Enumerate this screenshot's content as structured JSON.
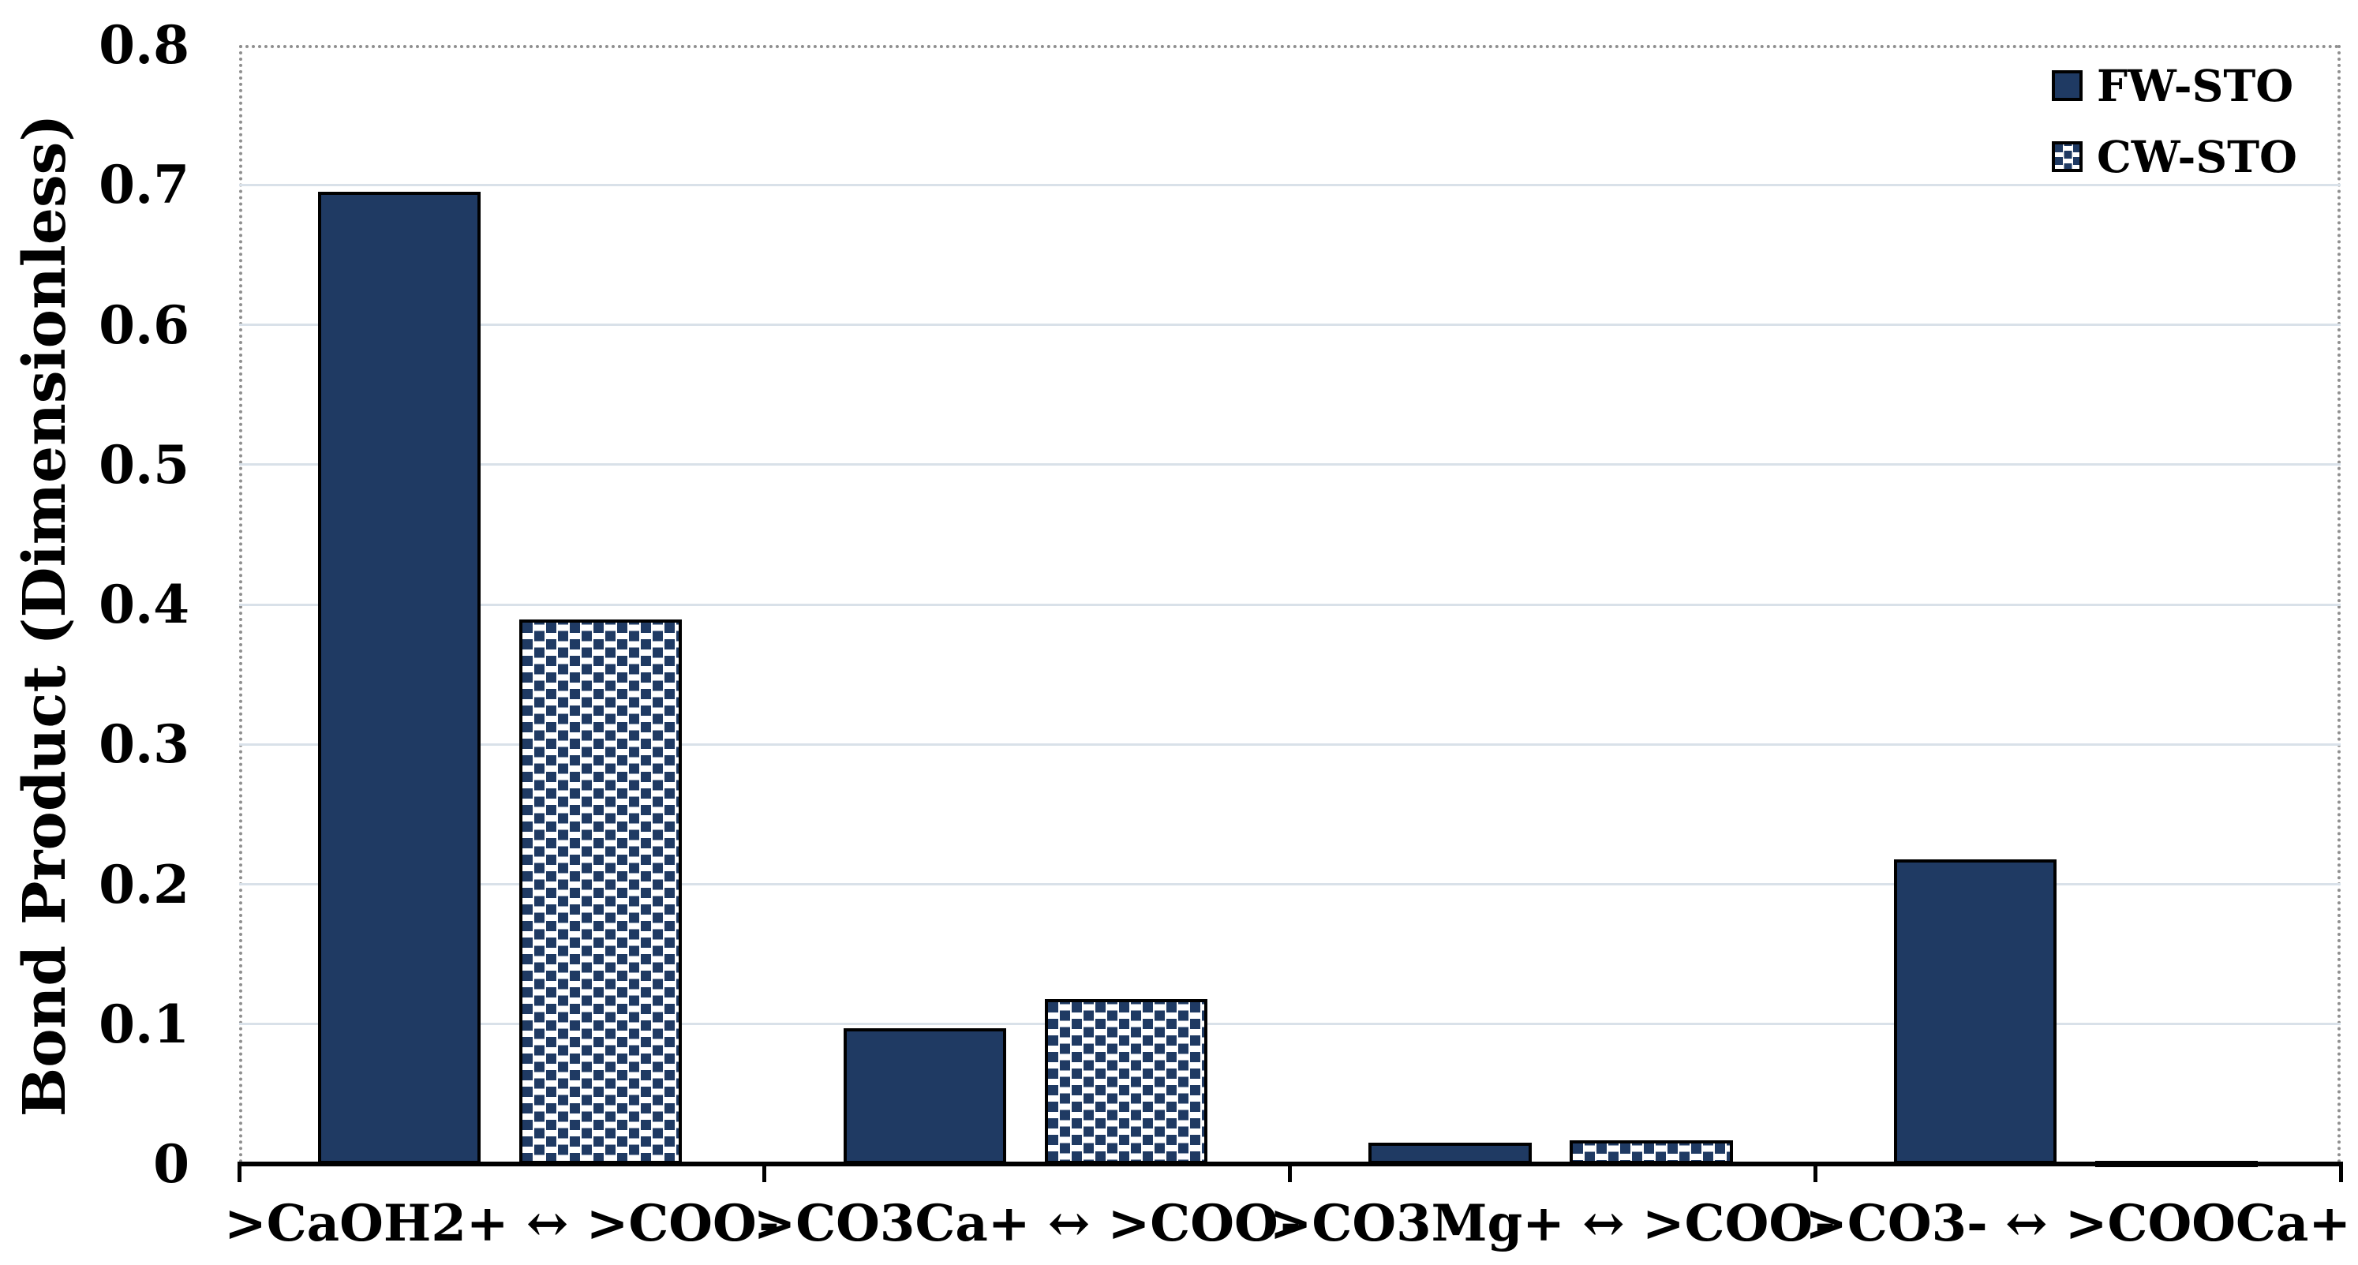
{
  "chart_data": {
    "type": "bar",
    "title": "",
    "xlabel": "",
    "ylabel": "Bond Product (Dimensionless)",
    "ylim": [
      0,
      0.8
    ],
    "ytick_step": 0.1,
    "ytick_labels": [
      "0",
      "0.1",
      "0.2",
      "0.3",
      "0.4",
      "0.5",
      "0.6",
      "0.7",
      "0.8"
    ],
    "grid": true,
    "legend_position": "top-right",
    "categories": [
      ">CaOH2+ ↔ >COO-",
      ">CO3Ca+ ↔ >COO-",
      ">CO3Mg+ ↔ >COO-",
      ">CO3- ↔ >COOCa+"
    ],
    "series": [
      {
        "name": "FW-STO",
        "fill_style": "solid",
        "values": [
          0.695,
          0.097,
          0.015,
          0.218
        ]
      },
      {
        "name": "CW-STO",
        "fill_style": "pattern-squares",
        "values": [
          0.389,
          0.118,
          0.017,
          0.002
        ]
      }
    ]
  },
  "colors": {
    "bar_fill": "#1f3a63",
    "bar_border": "#000000",
    "gridline": "#d9e1e9",
    "plot_border_dotted": "#8f8f8f",
    "axis_line": "#000000",
    "text": "#000000",
    "background": "#ffffff"
  }
}
